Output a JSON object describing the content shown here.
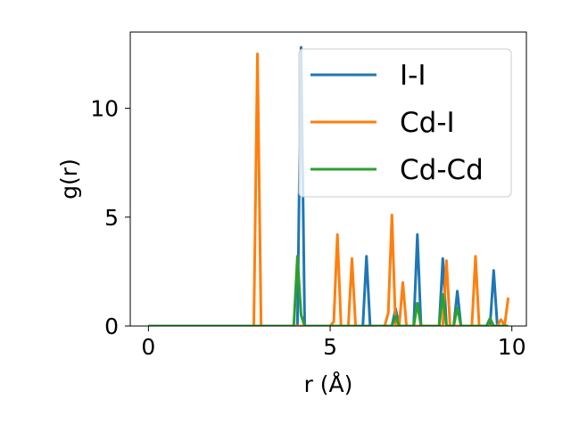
{
  "chart_data": {
    "type": "line",
    "title": "",
    "xlabel": "r (Å)",
    "ylabel": "g(r)",
    "xlim": [
      -0.5,
      10.4
    ],
    "ylim": [
      0,
      13.5
    ],
    "xticks": [
      0,
      5,
      10
    ],
    "yticks": [
      0,
      5,
      10
    ],
    "grid": false,
    "legend_position": "top-right",
    "series": [
      {
        "name": "I-I",
        "color": "#1f77b4",
        "x": [
          0,
          4.1,
          4.2,
          4.3,
          5.9,
          6.0,
          6.1,
          6.7,
          6.8,
          6.9,
          7.3,
          7.4,
          7.5,
          8.0,
          8.1,
          8.2,
          8.4,
          8.5,
          8.6,
          9.4,
          9.5,
          9.6,
          9.9
        ],
        "y": [
          0,
          0,
          12.8,
          0,
          0,
          3.2,
          0,
          0,
          0.8,
          0,
          0,
          4.2,
          0,
          0,
          3.1,
          0,
          0,
          1.6,
          0,
          0,
          2.55,
          0,
          0
        ]
      },
      {
        "name": "Cd-I",
        "color": "#ff7f0e",
        "x": [
          0,
          2.9,
          3.0,
          3.1,
          5.0,
          5.1,
          5.2,
          5.3,
          5.5,
          5.6,
          5.7,
          6.5,
          6.6,
          6.7,
          6.8,
          6.9,
          7.0,
          7.1,
          7.2,
          8.1,
          8.2,
          8.3,
          8.8,
          8.9,
          9.0,
          9.1,
          9.6,
          9.7,
          9.8,
          9.9
        ],
        "y": [
          0,
          0,
          12.5,
          0,
          0,
          0.2,
          4.2,
          0,
          0,
          3.1,
          0,
          0,
          0.6,
          5.1,
          0,
          0,
          2.0,
          0,
          0,
          0,
          3.0,
          0,
          0,
          0,
          3.2,
          0,
          0,
          0.3,
          0,
          1.3
        ]
      },
      {
        "name": "Cd-Cd",
        "color": "#2ca02c",
        "x": [
          0,
          4.0,
          4.1,
          4.2,
          4.3,
          6.7,
          6.8,
          6.9,
          7.3,
          7.4,
          7.5,
          8.0,
          8.1,
          8.2,
          8.4,
          8.5,
          8.6,
          9.3,
          9.4,
          9.5,
          9.9
        ],
        "y": [
          0,
          0,
          3.2,
          0.5,
          0,
          0,
          0.45,
          0,
          0,
          1.05,
          0,
          0,
          1.45,
          0,
          0,
          0.85,
          0,
          0,
          0.35,
          0,
          0
        ]
      }
    ]
  }
}
